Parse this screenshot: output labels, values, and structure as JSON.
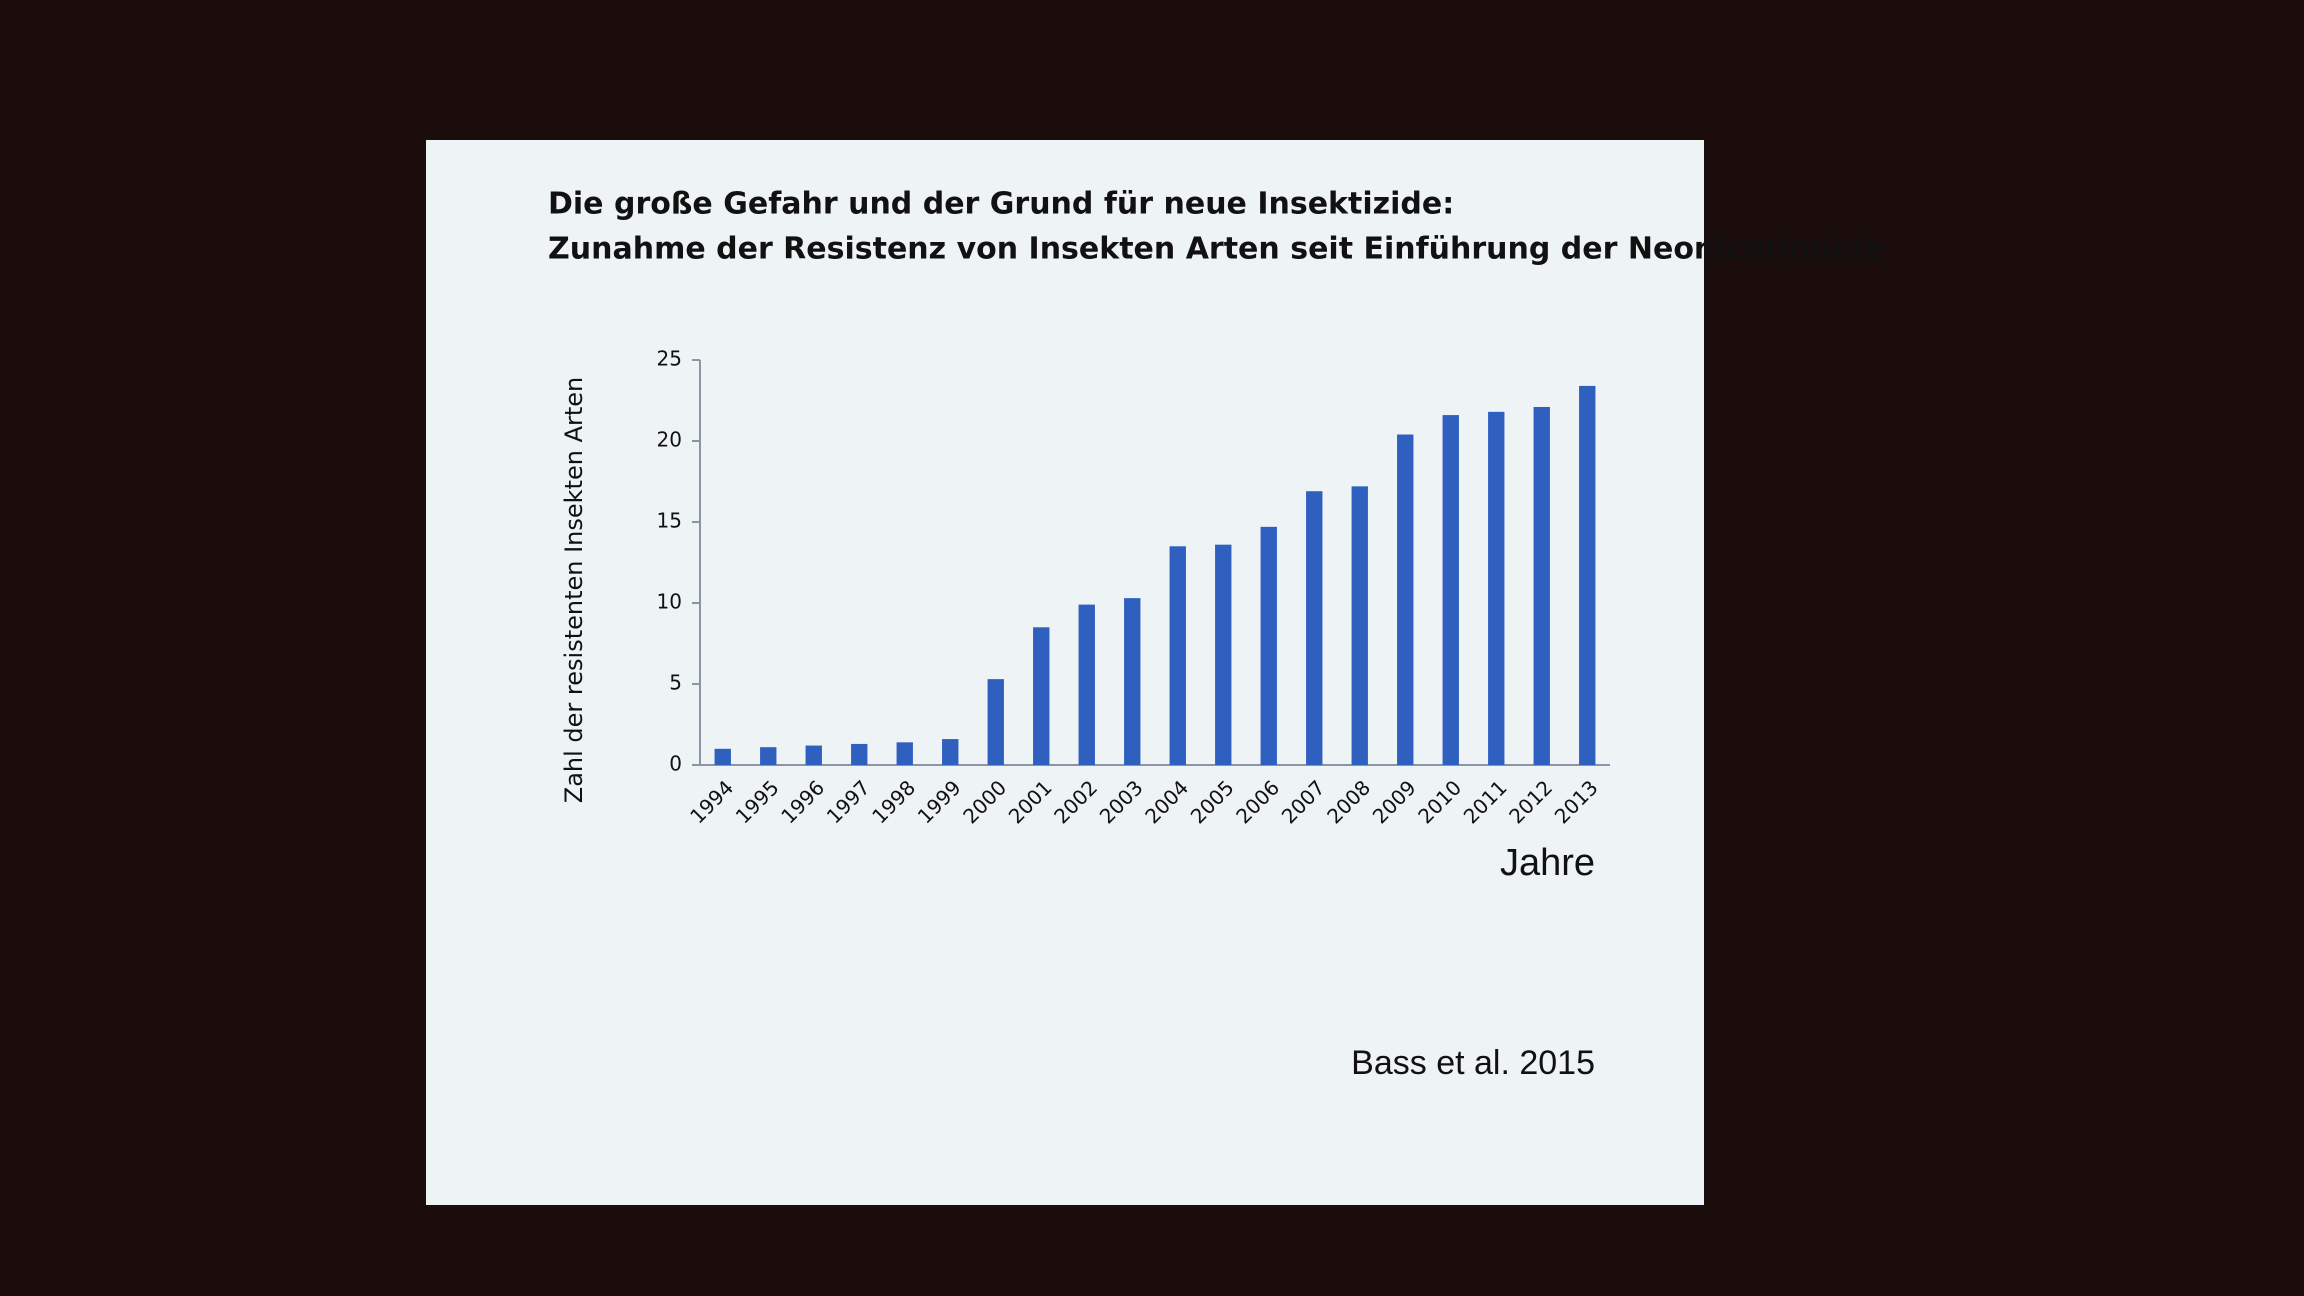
{
  "chart_data": {
    "type": "bar",
    "title": "Die große Gefahr und der Grund für neue Insektizide:",
    "subtitle": "Zunahme der Resistenz von Insekten Arten seit Einführung der Neonicotinoide",
    "y_label": "Zahl der resistenten Insekten Arten",
    "x_label": "Jahre",
    "source": "Bass et al. 2015",
    "categories": [
      "1994",
      "1995",
      "1996",
      "1997",
      "1998",
      "1999",
      "2000",
      "2001",
      "2002",
      "2003",
      "2004",
      "2005",
      "2006",
      "2007",
      "2008",
      "2009",
      "2010",
      "2011",
      "2012",
      "2013"
    ],
    "values": [
      1,
      1.1,
      1.2,
      1.3,
      1.4,
      1.6,
      5.3,
      8.5,
      9.9,
      10.3,
      13.5,
      13.6,
      14.7,
      16.9,
      17.2,
      20.4,
      21.6,
      21.8,
      22.1,
      23.4
    ],
    "color": "#2f5fbf",
    "ylim": [
      0,
      25
    ],
    "yticks": [
      0,
      5,
      10,
      15,
      20,
      25
    ],
    "grid": false
  }
}
